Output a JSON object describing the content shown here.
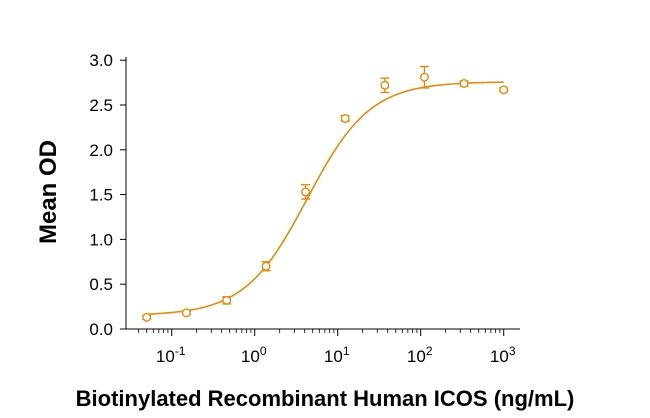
{
  "chart_data": {
    "type": "scatter",
    "title": "",
    "xlabel": "Biotinylated Recombinant Human ICOS (ng/mL)",
    "ylabel": "Mean OD",
    "xscale": "log10",
    "xlim": [
      0.04,
      1200
    ],
    "ylim": [
      0,
      3.0
    ],
    "x_ticks": [
      {
        "value": 0.1,
        "base": "10",
        "exp": "-1"
      },
      {
        "value": 1,
        "base": "10",
        "exp": "0"
      },
      {
        "value": 10,
        "base": "10",
        "exp": "1"
      },
      {
        "value": 100,
        "base": "10",
        "exp": "2"
      },
      {
        "value": 1000,
        "base": "10",
        "exp": "3"
      }
    ],
    "y_ticks": [
      "0.0",
      "0.5",
      "1.0",
      "1.5",
      "2.0",
      "2.5",
      "3.0"
    ],
    "grid": false,
    "legend": "none",
    "color": "#E8890C",
    "series": [
      {
        "x": [
          0.05,
          0.15,
          0.46,
          1.37,
          4.1,
          12.3,
          37,
          111,
          333,
          1000
        ],
        "y": [
          0.13,
          0.18,
          0.32,
          0.7,
          1.53,
          2.35,
          2.72,
          2.81,
          2.74,
          2.67
        ],
        "error": [
          0.02,
          0.02,
          0.04,
          0.05,
          0.08,
          0.03,
          0.08,
          0.12,
          0.03,
          0.02
        ],
        "fit": "four-parameter logistic"
      }
    ]
  }
}
